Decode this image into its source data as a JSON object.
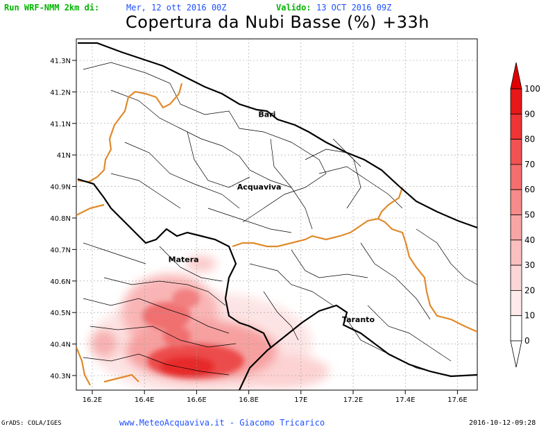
{
  "header": {
    "run_label": "Run WRF-NMM 2km di:",
    "run_date": "Mer, 12 ott 2016 00Z",
    "valid_label": "Valido:",
    "valid_date": "13 OCT 2016 09Z",
    "title": "Copertura da Nubi Basse (%) +33h"
  },
  "map": {
    "lat_labels": [
      "41.3N",
      "41.2N",
      "41.1N",
      "41N",
      "40.9N",
      "40.8N",
      "40.7N",
      "40.6N",
      "40.5N",
      "40.4N",
      "40.3N"
    ],
    "lon_labels": [
      "16.2E",
      "16.4E",
      "16.6E",
      "16.8E",
      "17E",
      "17.2E",
      "17.4E",
      "17.6E"
    ],
    "lat_values": [
      41.3,
      41.2,
      41.1,
      41.0,
      40.9,
      40.8,
      40.7,
      40.6,
      40.5,
      40.4,
      40.3
    ],
    "lon_values": [
      16.2,
      16.4,
      16.6,
      16.8,
      17.0,
      17.2,
      17.4,
      17.6
    ],
    "cities": [
      {
        "name": "Bari",
        "lon": 16.87,
        "lat": 41.12
      },
      {
        "name": "Acquaviva",
        "lon": 16.84,
        "lat": 40.89
      },
      {
        "name": "Matera",
        "lon": 16.55,
        "lat": 40.66
      },
      {
        "name": "Taranto",
        "lon": 17.22,
        "lat": 40.47
      }
    ],
    "colors": {
      "coast": "#000000",
      "region_border": "#e08a2a",
      "province": "#000000",
      "grid": "#999999"
    }
  },
  "colorbar": {
    "labels": [
      "100",
      "90",
      "80",
      "70",
      "60",
      "50",
      "40",
      "30",
      "20",
      "10",
      "0"
    ],
    "colors": [
      "#e00000",
      "#e81818",
      "#ee3434",
      "#f25252",
      "#f56e6e",
      "#f78a8a",
      "#f9a5a5",
      "#fbbfbf",
      "#fcd6d6",
      "#feeaea",
      "#ffffff"
    ]
  },
  "footer": {
    "grads": "GrADS: COLA/IGES",
    "credit": "www.MeteoAcquaviva.it  -  Giacomo Tricarico",
    "stamp": "2016-10-12-09:28"
  }
}
